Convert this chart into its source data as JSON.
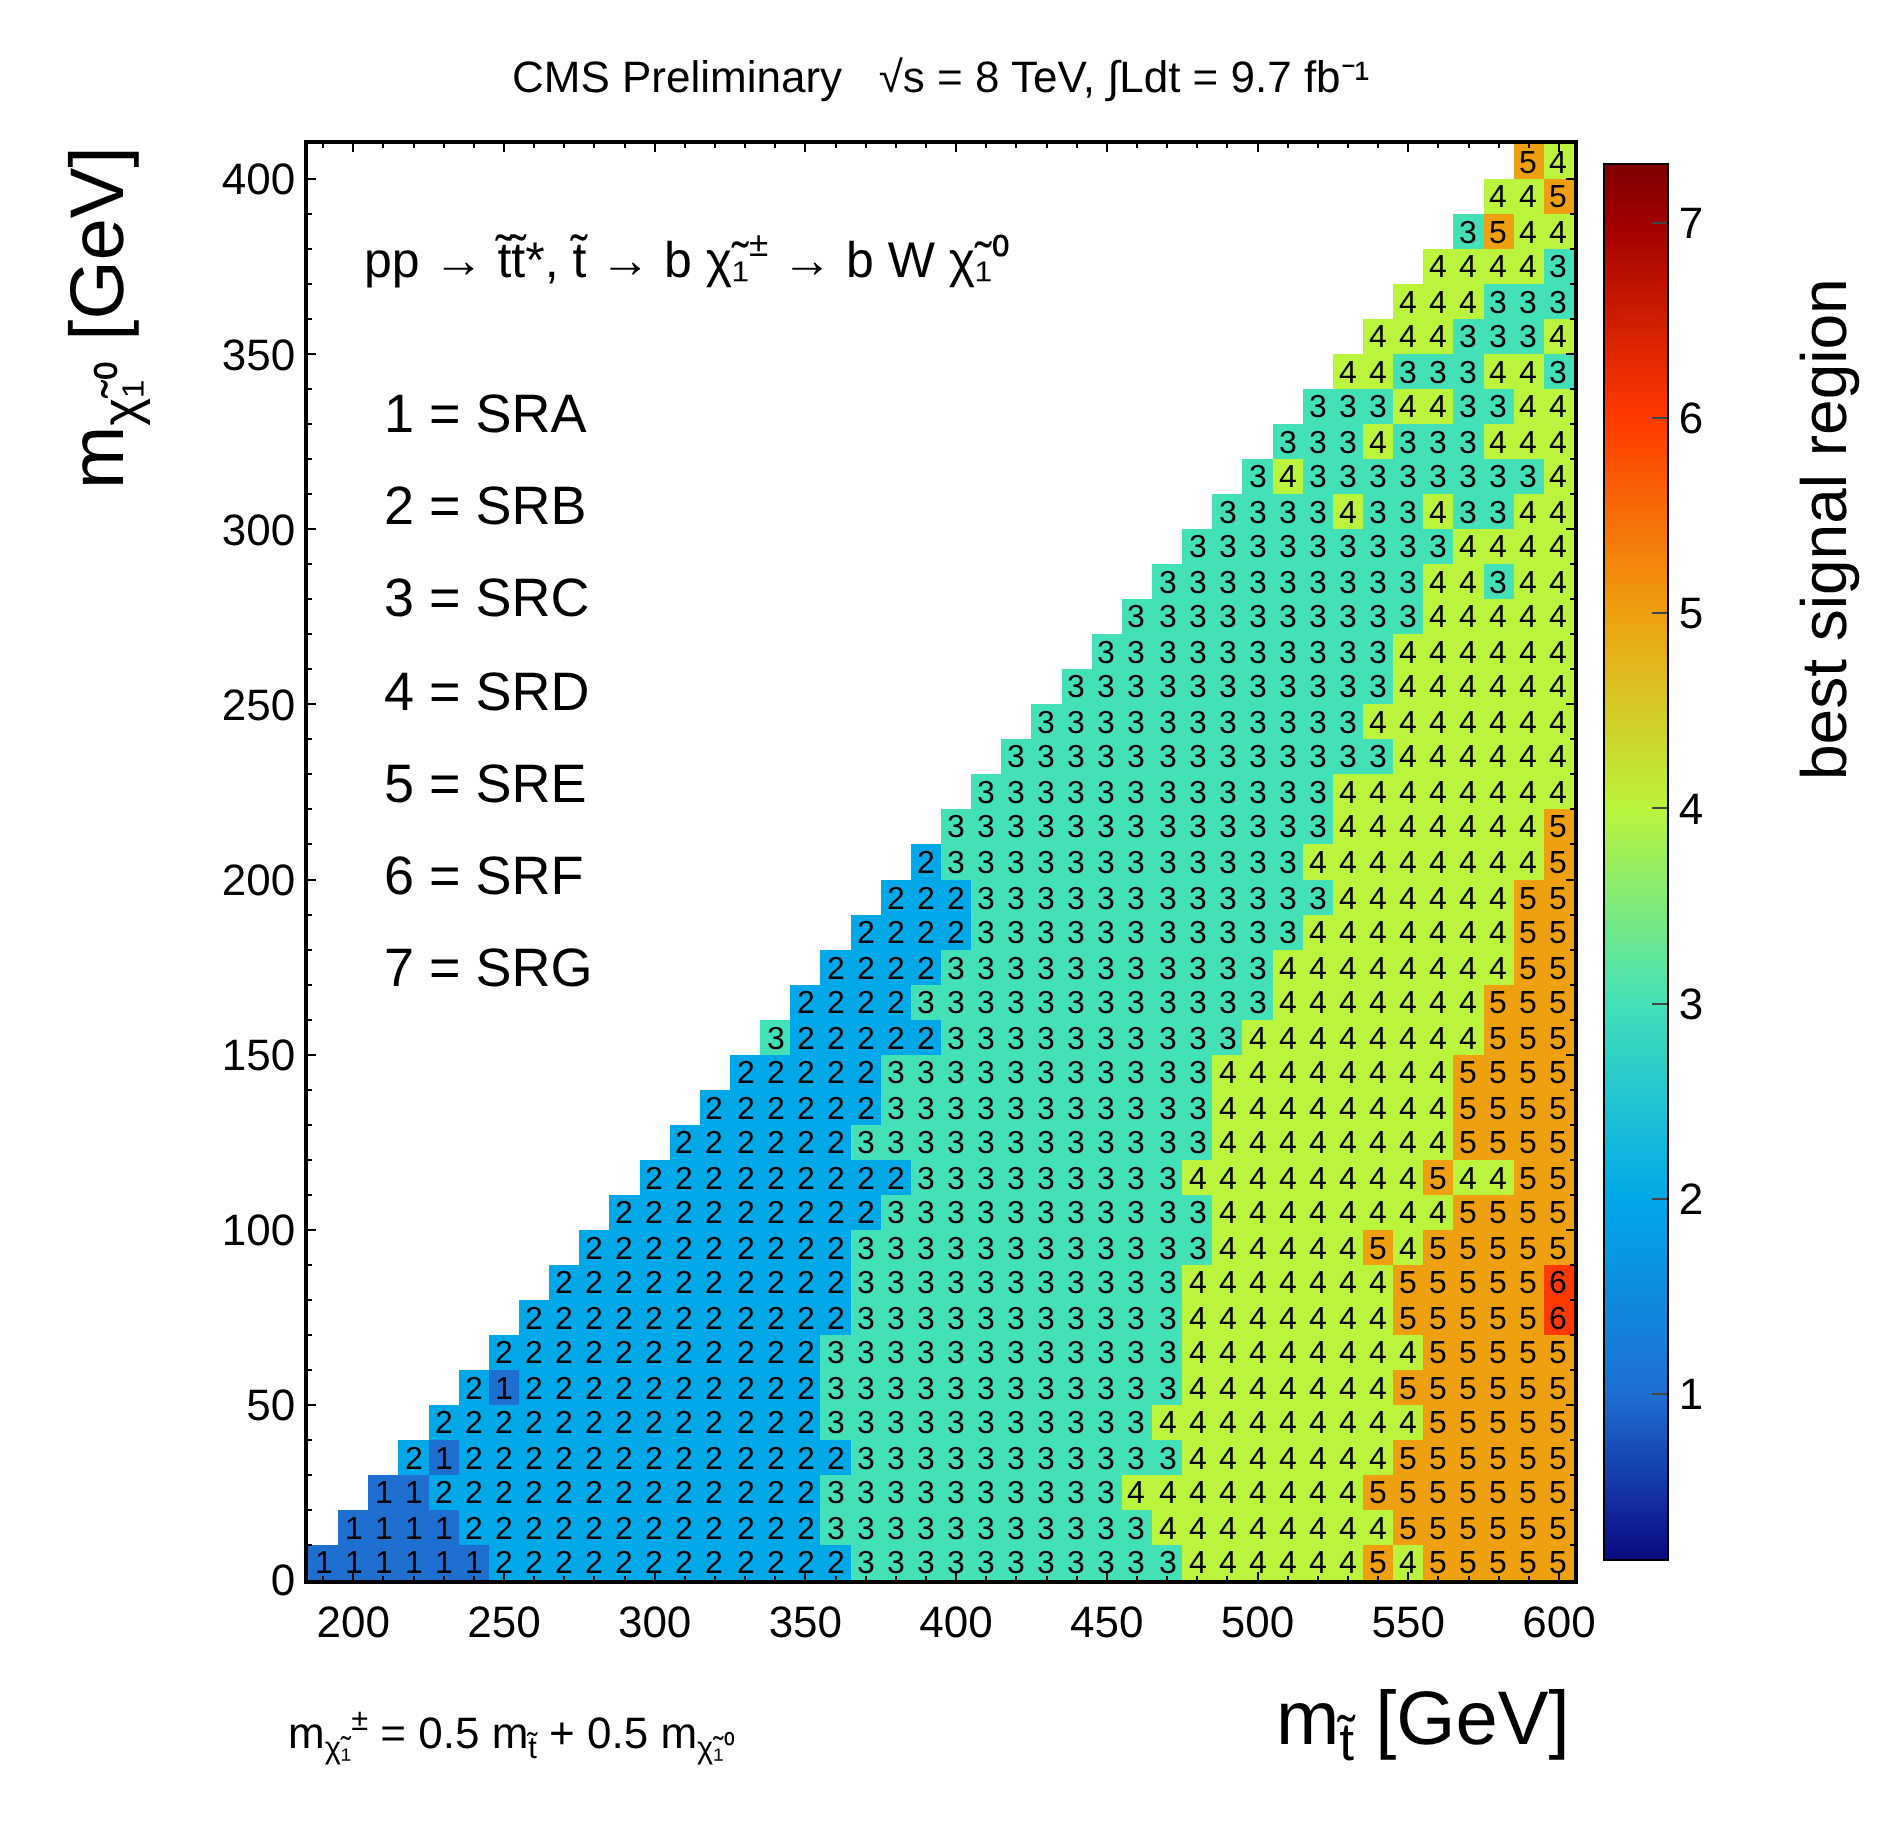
{
  "chart_data": {
    "type": "heatmap",
    "title": "CMS Preliminary   √s = 8 TeV, ∫Ldt = 9.7 fb⁻¹",
    "xlabel": "m$_{t̃}$ [GeV]",
    "ylabel": "m$_{χ̃₁⁰}$ [GeV]",
    "clabel": "best signal region",
    "annotations": [
      "pp → t̃t̃*, t̃ → b χ̃₁$^{±}$ → b W χ̃₁⁰",
      "1 = SRA",
      "2 = SRB",
      "3 = SRC",
      "4 = SRD",
      "5 = SRE",
      "6 = SRF",
      "7 = SRG",
      "m$_{χ̃₁}$$^{±}$ = 0.5 m$_{t̃}$ + 0.5 m$_{χ̃₁⁰}$"
    ],
    "x": [
      190,
      200,
      210,
      220,
      230,
      240,
      250,
      260,
      270,
      280,
      290,
      300,
      310,
      320,
      330,
      340,
      350,
      360,
      370,
      380,
      390,
      400,
      410,
      420,
      430,
      440,
      450,
      460,
      470,
      480,
      490,
      500,
      510,
      520,
      530,
      540,
      550,
      560,
      570,
      580,
      590,
      600
    ],
    "xlim": [
      185,
      605
    ],
    "xticks": [
      200,
      250,
      300,
      350,
      400,
      450,
      500,
      550,
      600
    ],
    "ylim": [
      0,
      410
    ],
    "yticks": [
      0,
      50,
      100,
      150,
      200,
      250,
      300,
      350,
      400
    ],
    "clim": [
      0.15,
      7.3
    ],
    "cticks": [
      1,
      2,
      3,
      4,
      5,
      6,
      7
    ],
    "data_labels": true,
    "cells": [
      [
        null,
        null,
        null,
        null,
        null,
        null,
        null,
        null,
        null,
        null,
        null,
        null,
        null,
        null,
        null,
        null,
        null,
        null,
        null,
        null,
        null,
        null,
        null,
        null,
        null,
        null,
        null,
        null,
        null,
        null,
        null,
        null,
        null,
        null,
        null,
        null,
        null,
        null,
        null,
        null,
        5,
        4
      ],
      [
        null,
        null,
        null,
        null,
        null,
        null,
        null,
        null,
        null,
        null,
        null,
        null,
        null,
        null,
        null,
        null,
        null,
        null,
        null,
        null,
        null,
        null,
        null,
        null,
        null,
        null,
        null,
        null,
        null,
        null,
        null,
        null,
        null,
        null,
        null,
        null,
        null,
        null,
        null,
        4,
        4,
        5
      ],
      [
        null,
        null,
        null,
        null,
        null,
        null,
        null,
        null,
        null,
        null,
        null,
        null,
        null,
        null,
        null,
        null,
        null,
        null,
        null,
        null,
        null,
        null,
        null,
        null,
        null,
        null,
        null,
        null,
        null,
        null,
        null,
        null,
        null,
        null,
        null,
        null,
        null,
        null,
        3,
        5,
        4,
        4
      ],
      [
        null,
        null,
        null,
        null,
        null,
        null,
        null,
        null,
        null,
        null,
        null,
        null,
        null,
        null,
        null,
        null,
        null,
        null,
        null,
        null,
        null,
        null,
        null,
        null,
        null,
        null,
        null,
        null,
        null,
        null,
        null,
        null,
        null,
        null,
        null,
        null,
        null,
        4,
        4,
        4,
        4,
        3
      ],
      [
        null,
        null,
        null,
        null,
        null,
        null,
        null,
        null,
        null,
        null,
        null,
        null,
        null,
        null,
        null,
        null,
        null,
        null,
        null,
        null,
        null,
        null,
        null,
        null,
        null,
        null,
        null,
        null,
        null,
        null,
        null,
        null,
        null,
        null,
        null,
        null,
        4,
        4,
        4,
        3,
        3,
        3
      ],
      [
        null,
        null,
        null,
        null,
        null,
        null,
        null,
        null,
        null,
        null,
        null,
        null,
        null,
        null,
        null,
        null,
        null,
        null,
        null,
        null,
        null,
        null,
        null,
        null,
        null,
        null,
        null,
        null,
        null,
        null,
        null,
        null,
        null,
        null,
        null,
        4,
        4,
        4,
        3,
        3,
        3,
        4
      ],
      [
        null,
        null,
        null,
        null,
        null,
        null,
        null,
        null,
        null,
        null,
        null,
        null,
        null,
        null,
        null,
        null,
        null,
        null,
        null,
        null,
        null,
        null,
        null,
        null,
        null,
        null,
        null,
        null,
        null,
        null,
        null,
        null,
        null,
        null,
        4,
        4,
        3,
        3,
        3,
        4,
        4,
        3
      ],
      [
        null,
        null,
        null,
        null,
        null,
        null,
        null,
        null,
        null,
        null,
        null,
        null,
        null,
        null,
        null,
        null,
        null,
        null,
        null,
        null,
        null,
        null,
        null,
        null,
        null,
        null,
        null,
        null,
        null,
        null,
        null,
        null,
        null,
        3,
        3,
        3,
        4,
        4,
        3,
        3,
        4,
        4
      ],
      [
        null,
        null,
        null,
        null,
        null,
        null,
        null,
        null,
        null,
        null,
        null,
        null,
        null,
        null,
        null,
        null,
        null,
        null,
        null,
        null,
        null,
        null,
        null,
        null,
        null,
        null,
        null,
        null,
        null,
        null,
        null,
        null,
        3,
        3,
        3,
        4,
        3,
        3,
        3,
        4,
        4,
        4
      ],
      [
        null,
        null,
        null,
        null,
        null,
        null,
        null,
        null,
        null,
        null,
        null,
        null,
        null,
        null,
        null,
        null,
        null,
        null,
        null,
        null,
        null,
        null,
        null,
        null,
        null,
        null,
        null,
        null,
        null,
        null,
        null,
        3,
        4,
        3,
        3,
        3,
        3,
        3,
        3,
        3,
        3,
        4
      ],
      [
        null,
        null,
        null,
        null,
        null,
        null,
        null,
        null,
        null,
        null,
        null,
        null,
        null,
        null,
        null,
        null,
        null,
        null,
        null,
        null,
        null,
        null,
        null,
        null,
        null,
        null,
        null,
        null,
        null,
        null,
        3,
        3,
        3,
        3,
        4,
        3,
        3,
        4,
        3,
        3,
        4,
        4
      ],
      [
        null,
        null,
        null,
        null,
        null,
        null,
        null,
        null,
        null,
        null,
        null,
        null,
        null,
        null,
        null,
        null,
        null,
        null,
        null,
        null,
        null,
        null,
        null,
        null,
        null,
        null,
        null,
        null,
        null,
        3,
        3,
        3,
        3,
        3,
        3,
        3,
        3,
        3,
        4,
        4,
        4,
        4
      ],
      [
        null,
        null,
        null,
        null,
        null,
        null,
        null,
        null,
        null,
        null,
        null,
        null,
        null,
        null,
        null,
        null,
        null,
        null,
        null,
        null,
        null,
        null,
        null,
        null,
        null,
        null,
        null,
        null,
        3,
        3,
        3,
        3,
        3,
        3,
        3,
        3,
        3,
        4,
        4,
        3,
        4,
        4
      ],
      [
        null,
        null,
        null,
        null,
        null,
        null,
        null,
        null,
        null,
        null,
        null,
        null,
        null,
        null,
        null,
        null,
        null,
        null,
        null,
        null,
        null,
        null,
        null,
        null,
        null,
        null,
        null,
        3,
        3,
        3,
        3,
        3,
        3,
        3,
        3,
        3,
        3,
        4,
        4,
        4,
        4,
        4
      ],
      [
        null,
        null,
        null,
        null,
        null,
        null,
        null,
        null,
        null,
        null,
        null,
        null,
        null,
        null,
        null,
        null,
        null,
        null,
        null,
        null,
        null,
        null,
        null,
        null,
        null,
        null,
        3,
        3,
        3,
        3,
        3,
        3,
        3,
        3,
        3,
        3,
        4,
        4,
        4,
        4,
        4,
        4
      ],
      [
        null,
        null,
        null,
        null,
        null,
        null,
        null,
        null,
        null,
        null,
        null,
        null,
        null,
        null,
        null,
        null,
        null,
        null,
        null,
        null,
        null,
        null,
        null,
        null,
        null,
        3,
        3,
        3,
        3,
        3,
        3,
        3,
        3,
        3,
        3,
        3,
        4,
        4,
        4,
        4,
        4,
        4
      ],
      [
        null,
        null,
        null,
        null,
        null,
        null,
        null,
        null,
        null,
        null,
        null,
        null,
        null,
        null,
        null,
        null,
        null,
        null,
        null,
        null,
        null,
        null,
        null,
        null,
        3,
        3,
        3,
        3,
        3,
        3,
        3,
        3,
        3,
        3,
        3,
        4,
        4,
        4,
        4,
        4,
        4,
        4
      ],
      [
        null,
        null,
        null,
        null,
        null,
        null,
        null,
        null,
        null,
        null,
        null,
        null,
        null,
        null,
        null,
        null,
        null,
        null,
        null,
        null,
        null,
        null,
        null,
        3,
        3,
        3,
        3,
        3,
        3,
        3,
        3,
        3,
        3,
        3,
        3,
        3,
        4,
        4,
        4,
        4,
        4,
        4
      ],
      [
        null,
        null,
        null,
        null,
        null,
        null,
        null,
        null,
        null,
        null,
        null,
        null,
        null,
        null,
        null,
        null,
        null,
        null,
        null,
        null,
        null,
        null,
        3,
        3,
        3,
        3,
        3,
        3,
        3,
        3,
        3,
        3,
        3,
        3,
        4,
        4,
        4,
        4,
        4,
        4,
        4,
        4
      ],
      [
        null,
        null,
        null,
        null,
        null,
        null,
        null,
        null,
        null,
        null,
        null,
        null,
        null,
        null,
        null,
        null,
        null,
        null,
        null,
        null,
        null,
        3,
        3,
        3,
        3,
        3,
        3,
        3,
        3,
        3,
        3,
        3,
        3,
        3,
        4,
        4,
        4,
        4,
        4,
        4,
        4,
        5
      ],
      [
        null,
        null,
        null,
        null,
        null,
        null,
        null,
        null,
        null,
        null,
        null,
        null,
        null,
        null,
        null,
        null,
        null,
        null,
        null,
        null,
        2,
        3,
        3,
        3,
        3,
        3,
        3,
        3,
        3,
        3,
        3,
        3,
        3,
        4,
        4,
        4,
        4,
        4,
        4,
        4,
        4,
        5
      ],
      [
        null,
        null,
        null,
        null,
        null,
        null,
        null,
        null,
        null,
        null,
        null,
        null,
        null,
        null,
        null,
        null,
        null,
        null,
        null,
        2,
        2,
        2,
        3,
        3,
        3,
        3,
        3,
        3,
        3,
        3,
        3,
        3,
        3,
        3,
        4,
        4,
        4,
        4,
        4,
        4,
        5,
        5
      ],
      [
        null,
        null,
        null,
        null,
        null,
        null,
        null,
        null,
        null,
        null,
        null,
        null,
        null,
        null,
        null,
        null,
        null,
        null,
        2,
        2,
        2,
        2,
        3,
        3,
        3,
        3,
        3,
        3,
        3,
        3,
        3,
        3,
        3,
        4,
        4,
        4,
        4,
        4,
        4,
        4,
        5,
        5
      ],
      [
        null,
        null,
        null,
        null,
        null,
        null,
        null,
        null,
        null,
        null,
        null,
        null,
        null,
        null,
        null,
        null,
        null,
        2,
        2,
        2,
        2,
        3,
        3,
        3,
        3,
        3,
        3,
        3,
        3,
        3,
        3,
        3,
        4,
        4,
        4,
        4,
        4,
        4,
        4,
        4,
        5,
        5
      ],
      [
        null,
        null,
        null,
        null,
        null,
        null,
        null,
        null,
        null,
        null,
        null,
        null,
        null,
        null,
        null,
        null,
        2,
        2,
        2,
        2,
        3,
        3,
        3,
        3,
        3,
        3,
        3,
        3,
        3,
        3,
        3,
        3,
        4,
        4,
        4,
        4,
        4,
        4,
        4,
        5,
        5,
        5
      ],
      [
        null,
        null,
        null,
        null,
        null,
        null,
        null,
        null,
        null,
        null,
        null,
        null,
        null,
        null,
        null,
        3,
        2,
        2,
        2,
        2,
        2,
        3,
        3,
        3,
        3,
        3,
        3,
        3,
        3,
        3,
        3,
        4,
        4,
        4,
        4,
        4,
        4,
        4,
        4,
        5,
        5,
        5
      ],
      [
        null,
        null,
        null,
        null,
        null,
        null,
        null,
        null,
        null,
        null,
        null,
        null,
        null,
        null,
        2,
        2,
        2,
        2,
        2,
        3,
        3,
        3,
        3,
        3,
        3,
        3,
        3,
        3,
        3,
        3,
        4,
        4,
        4,
        4,
        4,
        4,
        4,
        4,
        5,
        5,
        5,
        5
      ],
      [
        null,
        null,
        null,
        null,
        null,
        null,
        null,
        null,
        null,
        null,
        null,
        null,
        null,
        2,
        2,
        2,
        2,
        2,
        2,
        3,
        3,
        3,
        3,
        3,
        3,
        3,
        3,
        3,
        3,
        3,
        4,
        4,
        4,
        4,
        4,
        4,
        4,
        4,
        5,
        5,
        5,
        5
      ],
      [
        null,
        null,
        null,
        null,
        null,
        null,
        null,
        null,
        null,
        null,
        null,
        null,
        2,
        2,
        2,
        2,
        2,
        2,
        3,
        3,
        3,
        3,
        3,
        3,
        3,
        3,
        3,
        3,
        3,
        3,
        4,
        4,
        4,
        4,
        4,
        4,
        4,
        4,
        5,
        5,
        5,
        5
      ],
      [
        null,
        null,
        null,
        null,
        null,
        null,
        null,
        null,
        null,
        null,
        null,
        2,
        2,
        2,
        2,
        2,
        2,
        2,
        2,
        2,
        3,
        3,
        3,
        3,
        3,
        3,
        3,
        3,
        3,
        4,
        4,
        4,
        4,
        4,
        4,
        4,
        4,
        5,
        4,
        4,
        5,
        5
      ],
      [
        null,
        null,
        null,
        null,
        null,
        null,
        null,
        null,
        null,
        null,
        2,
        2,
        2,
        2,
        2,
        2,
        2,
        2,
        2,
        3,
        3,
        3,
        3,
        3,
        3,
        3,
        3,
        3,
        3,
        3,
        4,
        4,
        4,
        4,
        4,
        4,
        4,
        4,
        5,
        5,
        5,
        5
      ],
      [
        null,
        null,
        null,
        null,
        null,
        null,
        null,
        null,
        null,
        2,
        2,
        2,
        2,
        2,
        2,
        2,
        2,
        2,
        3,
        3,
        3,
        3,
        3,
        3,
        3,
        3,
        3,
        3,
        3,
        3,
        4,
        4,
        4,
        4,
        4,
        5,
        4,
        5,
        5,
        5,
        5,
        5
      ],
      [
        null,
        null,
        null,
        null,
        null,
        null,
        null,
        null,
        2,
        2,
        2,
        2,
        2,
        2,
        2,
        2,
        2,
        2,
        3,
        3,
        3,
        3,
        3,
        3,
        3,
        3,
        3,
        3,
        3,
        4,
        4,
        4,
        4,
        4,
        4,
        4,
        5,
        5,
        5,
        5,
        5,
        6
      ],
      [
        null,
        null,
        null,
        null,
        null,
        null,
        null,
        2,
        2,
        2,
        2,
        2,
        2,
        2,
        2,
        2,
        2,
        2,
        3,
        3,
        3,
        3,
        3,
        3,
        3,
        3,
        3,
        3,
        3,
        4,
        4,
        4,
        4,
        4,
        4,
        4,
        5,
        5,
        5,
        5,
        5,
        6
      ],
      [
        null,
        null,
        null,
        null,
        null,
        null,
        2,
        2,
        2,
        2,
        2,
        2,
        2,
        2,
        2,
        2,
        2,
        3,
        3,
        3,
        3,
        3,
        3,
        3,
        3,
        3,
        3,
        3,
        3,
        4,
        4,
        4,
        4,
        4,
        4,
        4,
        4,
        5,
        5,
        5,
        5,
        5
      ],
      [
        null,
        null,
        null,
        null,
        null,
        2,
        1,
        2,
        2,
        2,
        2,
        2,
        2,
        2,
        2,
        2,
        2,
        3,
        3,
        3,
        3,
        3,
        3,
        3,
        3,
        3,
        3,
        3,
        3,
        4,
        4,
        4,
        4,
        4,
        4,
        4,
        5,
        5,
        5,
        5,
        5,
        5
      ],
      [
        null,
        null,
        null,
        null,
        2,
        2,
        2,
        2,
        2,
        2,
        2,
        2,
        2,
        2,
        2,
        2,
        2,
        3,
        3,
        3,
        3,
        3,
        3,
        3,
        3,
        3,
        3,
        3,
        4,
        4,
        4,
        4,
        4,
        4,
        4,
        4,
        4,
        5,
        5,
        5,
        5,
        5
      ],
      [
        null,
        null,
        null,
        2,
        1,
        2,
        2,
        2,
        2,
        2,
        2,
        2,
        2,
        2,
        2,
        2,
        2,
        2,
        3,
        3,
        3,
        3,
        3,
        3,
        3,
        3,
        3,
        3,
        3,
        4,
        4,
        4,
        4,
        4,
        4,
        4,
        5,
        5,
        5,
        5,
        5,
        5
      ],
      [
        null,
        null,
        1,
        1,
        2,
        2,
        2,
        2,
        2,
        2,
        2,
        2,
        2,
        2,
        2,
        2,
        2,
        3,
        3,
        3,
        3,
        3,
        3,
        3,
        3,
        3,
        3,
        4,
        4,
        4,
        4,
        4,
        4,
        4,
        4,
        5,
        5,
        5,
        5,
        5,
        5,
        5
      ],
      [
        null,
        1,
        1,
        1,
        1,
        2,
        2,
        2,
        2,
        2,
        2,
        2,
        2,
        2,
        2,
        2,
        2,
        3,
        3,
        3,
        3,
        3,
        3,
        3,
        3,
        3,
        3,
        3,
        4,
        4,
        4,
        4,
        4,
        4,
        4,
        4,
        5,
        5,
        5,
        5,
        5,
        5
      ],
      [
        1,
        1,
        1,
        1,
        1,
        1,
        2,
        2,
        2,
        2,
        2,
        2,
        2,
        2,
        2,
        2,
        2,
        2,
        3,
        3,
        3,
        3,
        3,
        3,
        3,
        3,
        3,
        3,
        3,
        4,
        4,
        4,
        4,
        4,
        4,
        5,
        4,
        5,
        5,
        5,
        5,
        5
      ]
    ]
  }
}
